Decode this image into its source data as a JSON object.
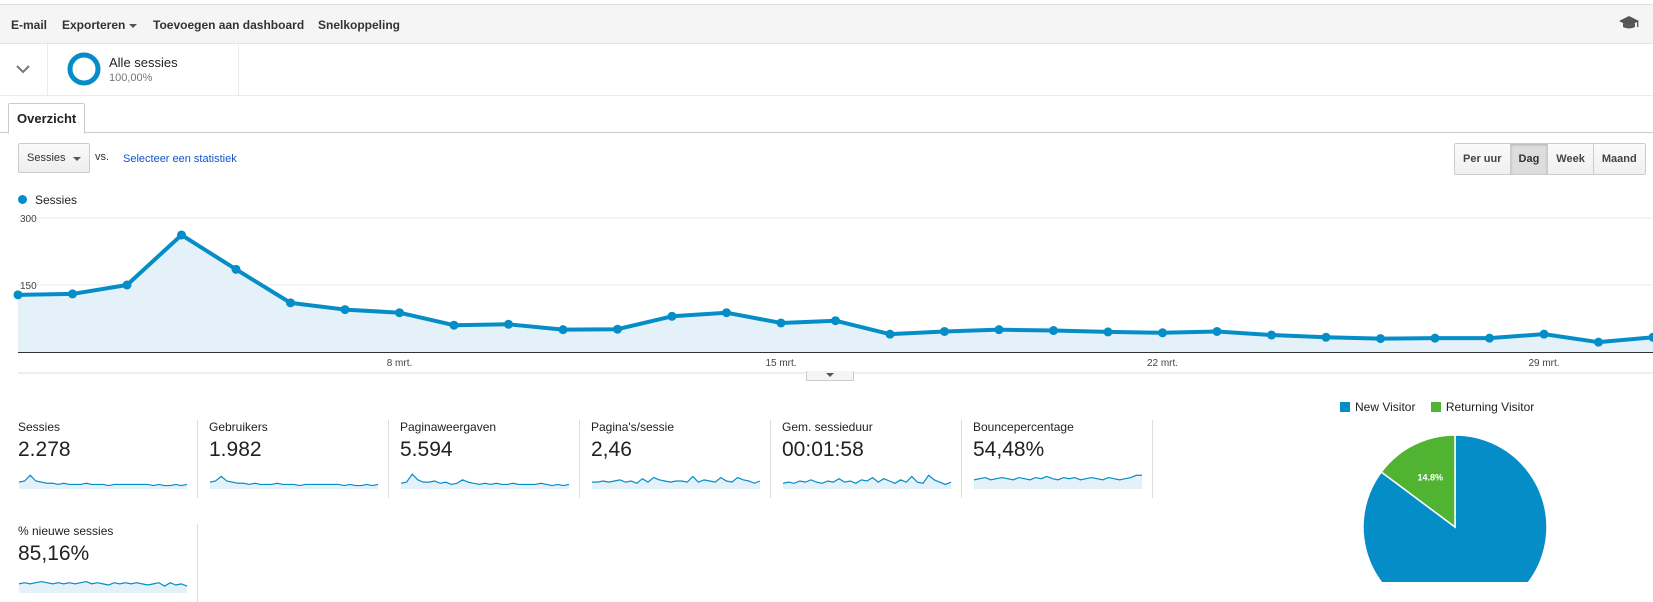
{
  "toolbar": {
    "email": "E-mail",
    "export": "Exporteren",
    "add_dashboard": "Toevoegen aan dashboard",
    "shortcut": "Snelkoppeling"
  },
  "segment": {
    "name": "Alle sessies",
    "percent": "100,00%"
  },
  "tabs": [
    {
      "label": "Overzicht"
    }
  ],
  "controls": {
    "metric": "Sessies",
    "vs": "vs.",
    "select_statistic": "Selecteer een statistiek",
    "granularity": [
      "Per uur",
      "Dag",
      "Week",
      "Maand"
    ],
    "active_granularity": "Dag"
  },
  "colors": {
    "series": "#058dc7",
    "returning": "#50b432",
    "fill": "#e5f1f8"
  },
  "chart_data": [
    {
      "type": "line",
      "legend": "Sessies",
      "y_ticks": [
        "300",
        "150"
      ],
      "ylim": [
        0,
        300
      ],
      "x_tick_labels": [
        "8 mrt.",
        "15 mrt.",
        "22 mrt.",
        "29 mrt."
      ],
      "x_tick_index": [
        7,
        14,
        21,
        28
      ],
      "series": [
        {
          "name": "Sessies",
          "values": [
            128,
            130,
            150,
            262,
            185,
            110,
            95,
            88,
            60,
            62,
            50,
            51,
            80,
            88,
            65,
            70,
            40,
            46,
            50,
            48,
            45,
            43,
            46,
            38,
            33,
            30,
            31,
            31,
            40,
            22,
            33
          ]
        }
      ]
    },
    {
      "type": "pie",
      "legend": [
        "New Visitor",
        "Returning Visitor"
      ],
      "values": [
        85.2,
        14.8
      ],
      "slice_label": "14.8%"
    }
  ],
  "cards": [
    {
      "label": "Sessies",
      "value": "2.278",
      "spark": [
        6,
        7,
        12,
        7,
        6,
        5,
        5,
        4,
        5,
        4,
        4,
        4,
        5,
        4,
        4,
        4,
        3,
        4,
        4,
        4,
        4,
        4,
        4,
        4,
        3,
        4,
        3,
        3,
        4,
        3,
        4
      ]
    },
    {
      "label": "Gebruikers",
      "value": "1.982",
      "spark": [
        6,
        7,
        11,
        7,
        6,
        5,
        5,
        4,
        5,
        4,
        4,
        4,
        5,
        4,
        4,
        4,
        3,
        4,
        4,
        4,
        4,
        4,
        4,
        4,
        3,
        4,
        3,
        3,
        4,
        3,
        4
      ]
    },
    {
      "label": "Paginaweergaven",
      "value": "5.594",
      "spark": [
        5,
        6,
        13,
        8,
        6,
        6,
        7,
        5,
        6,
        4,
        5,
        8,
        6,
        5,
        4,
        5,
        4,
        5,
        4,
        4,
        5,
        4,
        4,
        4,
        4,
        5,
        4,
        3,
        4,
        3,
        4
      ]
    },
    {
      "label": "Pagina's/sessie",
      "value": "2,46",
      "spark": [
        6,
        6,
        7,
        6,
        7,
        8,
        6,
        7,
        5,
        9,
        6,
        10,
        8,
        7,
        6,
        7,
        7,
        6,
        11,
        6,
        8,
        7,
        6,
        10,
        7,
        6,
        10,
        8,
        7,
        5,
        7
      ]
    },
    {
      "label": "Gem. sessieduur",
      "value": "00:01:58",
      "spark": [
        5,
        6,
        5,
        7,
        6,
        8,
        6,
        5,
        7,
        6,
        9,
        6,
        7,
        5,
        8,
        7,
        10,
        6,
        9,
        7,
        5,
        8,
        6,
        11,
        6,
        5,
        12,
        8,
        6,
        4,
        6
      ]
    },
    {
      "label": "Bouncepercentage",
      "value": "54,48%",
      "spark": [
        8,
        9,
        10,
        8,
        9,
        10,
        9,
        8,
        10,
        9,
        8,
        10,
        9,
        11,
        9,
        8,
        10,
        9,
        10,
        8,
        9,
        10,
        9,
        8,
        10,
        9,
        8,
        9,
        10,
        12,
        12
      ]
    },
    {
      "label": "% nieuwe sessies",
      "value": "85,16%",
      "spark": [
        8,
        9,
        8,
        9,
        10,
        9,
        8,
        9,
        8,
        9,
        8,
        9,
        10,
        8,
        9,
        8,
        7,
        9,
        8,
        9,
        8,
        9,
        8,
        7,
        8,
        9,
        6,
        9,
        7,
        8,
        6
      ]
    }
  ]
}
